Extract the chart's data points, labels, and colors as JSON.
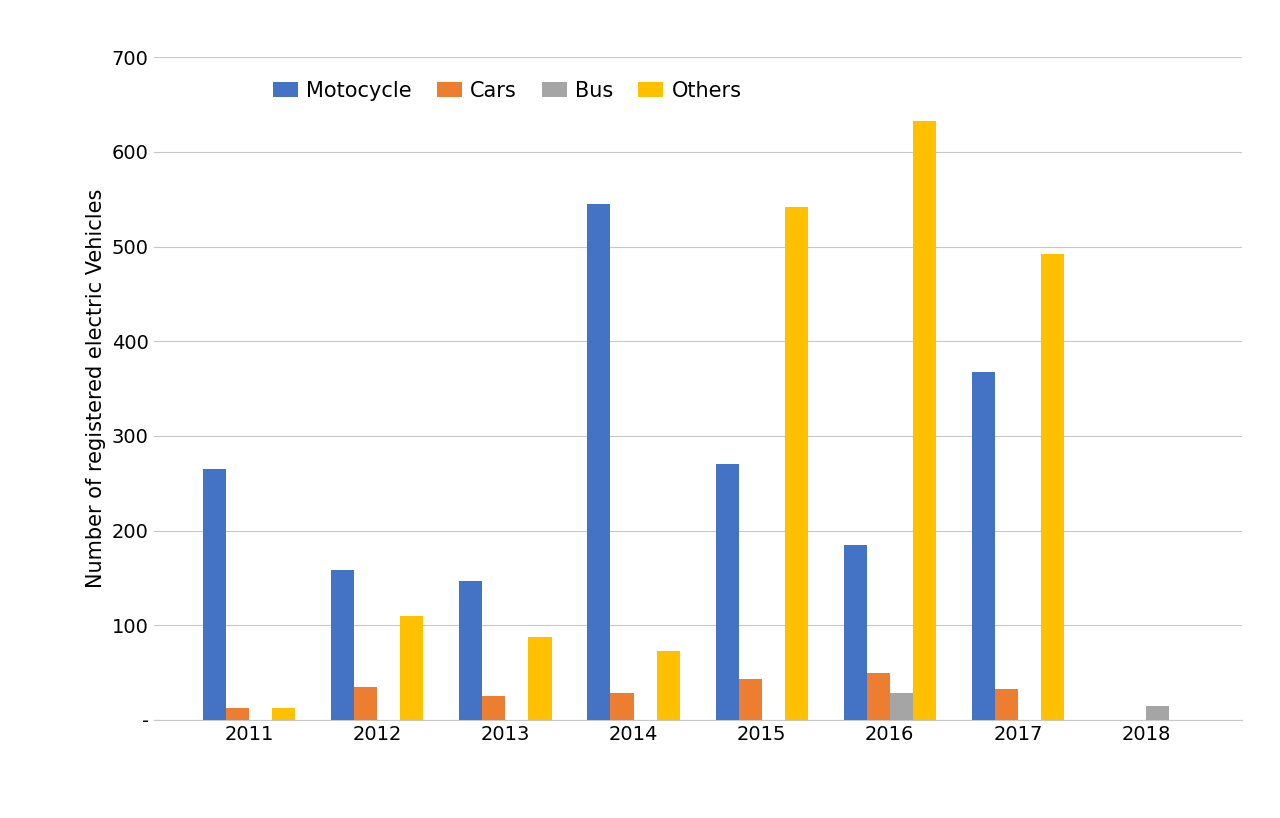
{
  "years": [
    2011,
    2012,
    2013,
    2014,
    2015,
    2016,
    2017,
    2018
  ],
  "motocycle": [
    265,
    158,
    147,
    545,
    270,
    185,
    368,
    0
  ],
  "cars": [
    13,
    35,
    25,
    28,
    43,
    50,
    33,
    0
  ],
  "bus": [
    0,
    0,
    0,
    0,
    0,
    28,
    0,
    15
  ],
  "others": [
    13,
    110,
    88,
    73,
    542,
    633,
    492,
    0
  ],
  "colors": {
    "motocycle": "#4472C4",
    "cars": "#ED7D31",
    "bus": "#A5A5A5",
    "others": "#FFC000"
  },
  "ylabel": "Number of registered electric Vehicles",
  "ylim": [
    0,
    700
  ],
  "yticks": [
    0,
    100,
    200,
    300,
    400,
    500,
    600,
    700
  ],
  "ytick_labels": [
    "-",
    "100",
    "200",
    "300",
    "400",
    "500",
    "600",
    "700"
  ],
  "legend_labels": [
    "Motocycle",
    "Cars",
    "Bus",
    "Others"
  ],
  "bar_width": 0.18,
  "background_color": "#FFFFFF",
  "grid_color": "#C8C8C8",
  "font_size": 15,
  "tick_font_size": 14
}
